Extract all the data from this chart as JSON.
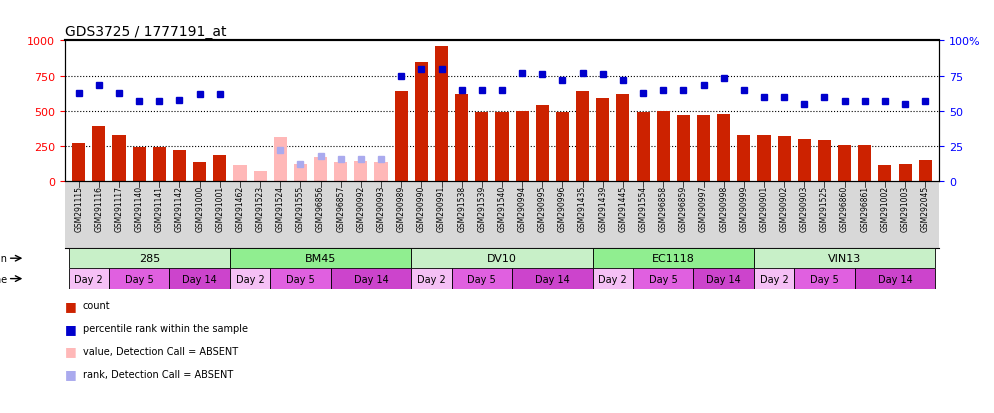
{
  "title": "GDS3725 / 1777191_at",
  "samples": [
    "GSM291115",
    "GSM291116",
    "GSM291117",
    "GSM291140",
    "GSM291141",
    "GSM291142",
    "GSM291000",
    "GSM291001",
    "GSM291462",
    "GSM291523",
    "GSM291524",
    "GSM291555",
    "GSM296856",
    "GSM296857",
    "GSM290992",
    "GSM290993",
    "GSM290989",
    "GSM290990",
    "GSM290991",
    "GSM291538",
    "GSM291539",
    "GSM291540",
    "GSM290994",
    "GSM290995",
    "GSM290996",
    "GSM291435",
    "GSM291439",
    "GSM291445",
    "GSM291554",
    "GSM296858",
    "GSM296859",
    "GSM290997",
    "GSM290998",
    "GSM290999",
    "GSM290901",
    "GSM290902",
    "GSM290903",
    "GSM291525",
    "GSM296860",
    "GSM296861",
    "GSM291002",
    "GSM291003",
    "GSM292045"
  ],
  "count": [
    275,
    390,
    325,
    240,
    240,
    225,
    140,
    185,
    null,
    null,
    null,
    null,
    null,
    null,
    null,
    null,
    640,
    850,
    960,
    620,
    490,
    490,
    500,
    540,
    490,
    640,
    590,
    620,
    490,
    500,
    470,
    470,
    480,
    325,
    325,
    320,
    300,
    295,
    255,
    260,
    118,
    125,
    150
  ],
  "percentile": [
    63,
    68,
    63,
    57,
    57,
    58,
    62,
    62,
    null,
    null,
    null,
    null,
    null,
    null,
    null,
    null,
    75,
    80,
    80,
    65,
    65,
    65,
    77,
    76,
    72,
    77,
    76,
    72,
    63,
    65,
    65,
    68,
    73,
    65,
    60,
    60,
    55,
    60,
    57,
    57,
    57,
    55,
    57
  ],
  "absent_value": [
    null,
    null,
    null,
    null,
    null,
    null,
    null,
    null,
    115,
    75,
    315,
    120,
    175,
    140,
    145,
    140,
    null,
    null,
    null,
    null,
    null,
    null,
    null,
    null,
    null,
    null,
    null,
    null,
    null,
    null,
    null,
    null,
    null,
    null,
    null,
    null,
    null,
    null,
    null,
    null,
    null,
    null,
    null
  ],
  "absent_rank": [
    null,
    null,
    null,
    null,
    null,
    null,
    null,
    null,
    null,
    null,
    22,
    12,
    18,
    16,
    16,
    16,
    null,
    null,
    null,
    null,
    null,
    null,
    null,
    null,
    null,
    null,
    null,
    null,
    null,
    null,
    null,
    null,
    null,
    null,
    null,
    null,
    null,
    null,
    null,
    null,
    null,
    null,
    null
  ],
  "strains": [
    {
      "label": "285",
      "start": 0,
      "end": 7,
      "color": "#c8f0c8"
    },
    {
      "label": "BM45",
      "start": 8,
      "end": 16,
      "color": "#90ee90"
    },
    {
      "label": "DV10",
      "start": 17,
      "end": 25,
      "color": "#c8f0c8"
    },
    {
      "label": "EC1118",
      "start": 26,
      "end": 33,
      "color": "#90ee90"
    },
    {
      "label": "VIN13",
      "start": 34,
      "end": 42,
      "color": "#c8f0c8"
    }
  ],
  "times": [
    {
      "label": "Day 2",
      "start": 0,
      "end": 1,
      "color": "#f5c0f5"
    },
    {
      "label": "Day 5",
      "start": 2,
      "end": 4,
      "color": "#e060e0"
    },
    {
      "label": "Day 14",
      "start": 5,
      "end": 7,
      "color": "#cc44cc"
    },
    {
      "label": "Day 2",
      "start": 8,
      "end": 9,
      "color": "#f5c0f5"
    },
    {
      "label": "Day 5",
      "start": 10,
      "end": 12,
      "color": "#e060e0"
    },
    {
      "label": "Day 14",
      "start": 13,
      "end": 16,
      "color": "#cc44cc"
    },
    {
      "label": "Day 2",
      "start": 17,
      "end": 18,
      "color": "#f5c0f5"
    },
    {
      "label": "Day 5",
      "start": 19,
      "end": 21,
      "color": "#e060e0"
    },
    {
      "label": "Day 14",
      "start": 22,
      "end": 25,
      "color": "#cc44cc"
    },
    {
      "label": "Day 2",
      "start": 26,
      "end": 27,
      "color": "#f5c0f5"
    },
    {
      "label": "Day 5",
      "start": 28,
      "end": 30,
      "color": "#e060e0"
    },
    {
      "label": "Day 14",
      "start": 31,
      "end": 33,
      "color": "#cc44cc"
    },
    {
      "label": "Day 2",
      "start": 34,
      "end": 35,
      "color": "#f5c0f5"
    },
    {
      "label": "Day 5",
      "start": 36,
      "end": 38,
      "color": "#e060e0"
    },
    {
      "label": "Day 14",
      "start": 39,
      "end": 42,
      "color": "#cc44cc"
    }
  ],
  "bar_color": "#cc2200",
  "dot_color": "#0000cc",
  "absent_bar_color": "#ffb8b8",
  "absent_dot_color": "#aaaaee",
  "ylim_left": [
    0,
    1000
  ],
  "ylim_right": [
    0,
    100
  ],
  "yticks_left": [
    0,
    250,
    500,
    750,
    1000
  ],
  "yticks_right": [
    0,
    25,
    50,
    75,
    100
  ],
  "gridlines": [
    250,
    500,
    750
  ],
  "bg_color": "#ffffff",
  "xticklabel_bg": "#d8d8d8"
}
